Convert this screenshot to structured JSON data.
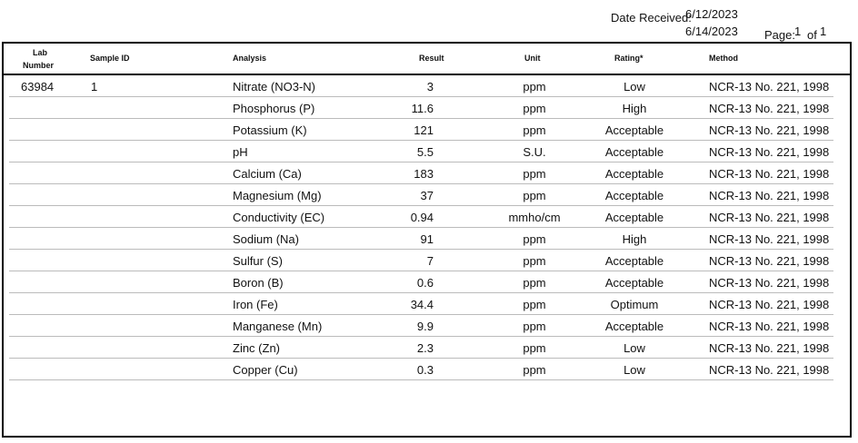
{
  "header": {
    "date_received_label": "Date Received:",
    "date_received": "6/12/2023",
    "second_date": "6/14/2023",
    "page_label": "Page:",
    "page_number": "1",
    "page_of": "of",
    "page_total": "1"
  },
  "columns": {
    "lab_number_line1": "Lab",
    "lab_number_line2": "Number",
    "sample_id": "Sample ID",
    "analysis": "Analysis",
    "result": "Result",
    "unit": "Unit",
    "rating": "Rating*",
    "method": "Method"
  },
  "rows": [
    {
      "lab": "63984",
      "sample_id": "1",
      "analysis": "Nitrate (NO3-N)",
      "result": "3",
      "unit": "ppm",
      "rating": "Low",
      "method": "NCR-13 No. 221, 1998"
    },
    {
      "lab": "",
      "sample_id": "",
      "analysis": "Phosphorus (P)",
      "result": "11.6",
      "unit": "ppm",
      "rating": "High",
      "method": "NCR-13 No. 221, 1998"
    },
    {
      "lab": "",
      "sample_id": "",
      "analysis": "Potassium (K)",
      "result": "121",
      "unit": "ppm",
      "rating": "Acceptable",
      "method": "NCR-13 No. 221, 1998"
    },
    {
      "lab": "",
      "sample_id": "",
      "analysis": "pH",
      "result": "5.5",
      "unit": "S.U.",
      "rating": "Acceptable",
      "method": "NCR-13 No. 221, 1998"
    },
    {
      "lab": "",
      "sample_id": "",
      "analysis": "Calcium (Ca)",
      "result": "183",
      "unit": "ppm",
      "rating": "Acceptable",
      "method": "NCR-13 No. 221, 1998"
    },
    {
      "lab": "",
      "sample_id": "",
      "analysis": "Magnesium (Mg)",
      "result": "37",
      "unit": "ppm",
      "rating": "Acceptable",
      "method": "NCR-13 No. 221, 1998"
    },
    {
      "lab": "",
      "sample_id": "",
      "analysis": "Conductivity (EC)",
      "result": "0.94",
      "unit": "mmho/cm",
      "rating": "Acceptable",
      "method": "NCR-13 No. 221, 1998"
    },
    {
      "lab": "",
      "sample_id": "",
      "analysis": "Sodium (Na)",
      "result": "91",
      "unit": "ppm",
      "rating": "High",
      "method": "NCR-13 No. 221, 1998"
    },
    {
      "lab": "",
      "sample_id": "",
      "analysis": "Sulfur (S)",
      "result": "7",
      "unit": "ppm",
      "rating": "Acceptable",
      "method": "NCR-13 No. 221, 1998"
    },
    {
      "lab": "",
      "sample_id": "",
      "analysis": "Boron (B)",
      "result": "0.6",
      "unit": "ppm",
      "rating": "Acceptable",
      "method": "NCR-13 No. 221, 1998"
    },
    {
      "lab": "",
      "sample_id": "",
      "analysis": "Iron (Fe)",
      "result": "34.4",
      "unit": "ppm",
      "rating": "Optimum",
      "method": "NCR-13 No. 221, 1998"
    },
    {
      "lab": "",
      "sample_id": "",
      "analysis": "Manganese (Mn)",
      "result": "9.9",
      "unit": "ppm",
      "rating": "Acceptable",
      "method": "NCR-13 No. 221, 1998"
    },
    {
      "lab": "",
      "sample_id": "",
      "analysis": "Zinc (Zn)",
      "result": "2.3",
      "unit": "ppm",
      "rating": "Low",
      "method": "NCR-13 No. 221, 1998"
    },
    {
      "lab": "",
      "sample_id": "",
      "analysis": "Copper (Cu)",
      "result": "0.3",
      "unit": "ppm",
      "rating": "Low",
      "method": "NCR-13 No. 221, 1998"
    }
  ]
}
